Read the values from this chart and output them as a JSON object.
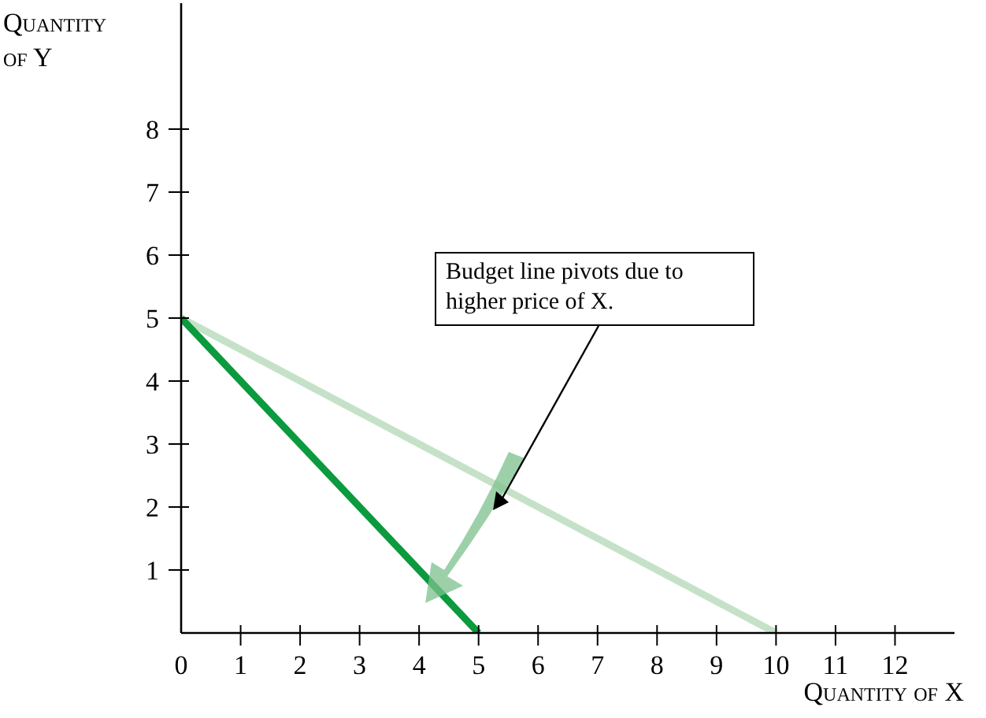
{
  "chart_data": {
    "type": "line",
    "xlabel": "Quantity of X",
    "ylabel": "Quantity of Y",
    "xlim": [
      0,
      13
    ],
    "ylim": [
      0,
      10
    ],
    "xticks": [
      0,
      1,
      2,
      3,
      4,
      5,
      6,
      7,
      8,
      9,
      10,
      11,
      12
    ],
    "yticks": [
      1,
      2,
      3,
      4,
      5,
      6,
      7,
      8
    ],
    "grid": false,
    "marker": "none",
    "line_style": "solid",
    "annotations": [
      "Budget line pivots due to higher price of X."
    ],
    "series": [
      {
        "color": "#c5e2c9",
        "x": [
          0,
          10
        ],
        "values": [
          5,
          0
        ]
      },
      {
        "color": "#0b9a3e",
        "x": [
          0,
          5
        ],
        "values": [
          5,
          0
        ]
      }
    ]
  }
}
